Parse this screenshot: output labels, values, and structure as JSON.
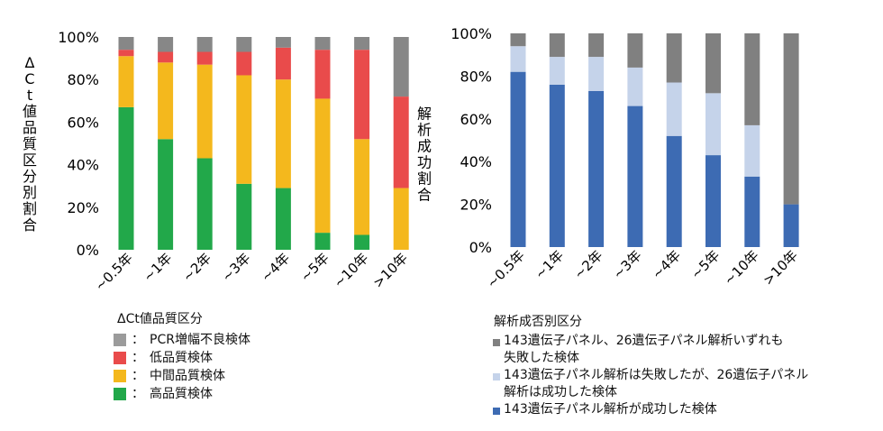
{
  "chart_data": [
    {
      "type": "bar",
      "stacked": true,
      "ylabel": "ΔCt値品質区分別割合",
      "yticks": [
        "0%",
        "20%",
        "40%",
        "60%",
        "80%",
        "100%"
      ],
      "ylim": [
        0,
        100
      ],
      "categories": [
        "~0.5年",
        "~1年",
        "~2年",
        "~3年",
        "~4年",
        "~5年",
        "~10年",
        ">10年"
      ],
      "series": [
        {
          "name": "高品質検体",
          "color": "#22a84a",
          "values": [
            67,
            52,
            43,
            31,
            29,
            8,
            7,
            0
          ]
        },
        {
          "name": "中間品質検体",
          "color": "#f4b81d",
          "values": [
            24,
            36,
            44,
            51,
            51,
            63,
            45,
            29
          ]
        },
        {
          "name": "低品質検体",
          "color": "#e94b4b",
          "values": [
            3,
            5,
            6,
            11,
            15,
            23,
            42,
            43
          ]
        },
        {
          "name": "PCR増幅不良検体",
          "color": "#878787",
          "values": [
            6,
            7,
            7,
            7,
            5,
            6,
            6,
            28
          ]
        }
      ],
      "legend": {
        "title": "ΔCt値品質区分",
        "colon": "：",
        "items": [
          {
            "label": "PCR増幅不良検体",
            "color": "#9b9b9b"
          },
          {
            "label": "低品質検体",
            "color": "#e94b4b"
          },
          {
            "label": "中間品質検体",
            "color": "#f4b81d"
          },
          {
            "label": "高品質検体",
            "color": "#22a84a"
          }
        ]
      }
    },
    {
      "type": "bar",
      "stacked": true,
      "ylabel": "解析成功割合",
      "yticks": [
        "0%",
        "20%",
        "40%",
        "60%",
        "80%",
        "100%"
      ],
      "ylim": [
        0,
        100
      ],
      "categories": [
        "~0.5年",
        "~1年",
        "~2年",
        "~3年",
        "~4年",
        "~5年",
        "~10年",
        ">10年"
      ],
      "series": [
        {
          "name": "143遺伝子パネル解析が成功した検体",
          "color": "#3d6bb3",
          "values": [
            82,
            76,
            73,
            66,
            52,
            43,
            33,
            20
          ]
        },
        {
          "name": "143遺伝子パネル解析は失敗したが、26遺伝子パネル解析は成功した検体",
          "color": "#c5d3ea",
          "values": [
            12,
            13,
            16,
            18,
            25,
            29,
            24,
            0
          ]
        },
        {
          "name": "143遺伝子パネル、26遺伝子パネル解析いずれも失敗した検体",
          "color": "#808080",
          "values": [
            6,
            11,
            11,
            16,
            23,
            28,
            43,
            80
          ]
        }
      ],
      "legend": {
        "title": "解析成否別区分",
        "items": [
          {
            "line1": "143遺伝子パネル、26遺伝子パネル解析いずれも",
            "line2": "失敗した検体",
            "color": "#808080"
          },
          {
            "line1": "143遺伝子パネル解析は失敗したが、26遺伝子パネル",
            "line2": "解析は成功した検体",
            "color": "#c5d3ea"
          },
          {
            "line1": "143遺伝子パネル解析が成功した検体",
            "line2": "",
            "color": "#3d6bb3"
          }
        ]
      }
    }
  ]
}
